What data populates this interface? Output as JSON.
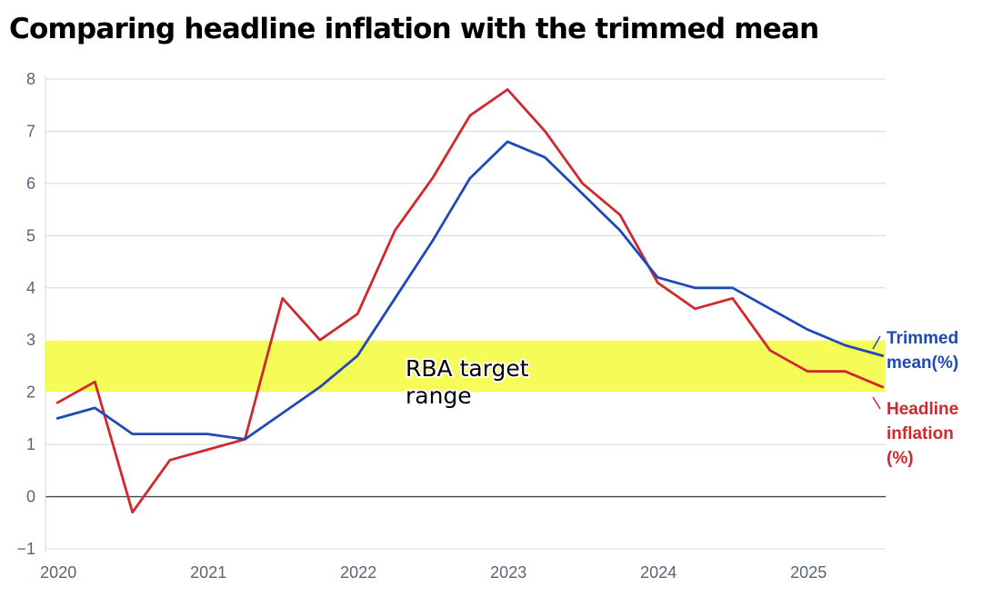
{
  "title": "Comparing headline inflation with the trimmed mean",
  "chart_data": {
    "type": "line",
    "title": "Comparing headline inflation with the trimmed mean",
    "x": [
      2020.0,
      2020.25,
      2020.5,
      2020.75,
      2021.0,
      2021.25,
      2021.5,
      2021.75,
      2022.0,
      2022.25,
      2022.5,
      2022.75,
      2023.0,
      2023.25,
      2023.5,
      2023.75,
      2024.0,
      2024.25,
      2024.5,
      2024.75,
      2025.0,
      2025.25,
      2025.5
    ],
    "x_ticks": [
      2020,
      2021,
      2022,
      2023,
      2024,
      2025
    ],
    "x_tick_labels": [
      "2020",
      "2021",
      "2022",
      "2023",
      "2024",
      "2025"
    ],
    "y_ticks": [
      -1,
      0,
      1,
      2,
      3,
      4,
      5,
      6,
      7,
      8
    ],
    "y_tick_labels": [
      "−1",
      "0",
      "1",
      "2",
      "3",
      "4",
      "5",
      "6",
      "7",
      "8"
    ],
    "xlim": [
      2019.92,
      2025.52
    ],
    "ylim": [
      -1,
      8
    ],
    "grid": true,
    "series": [
      {
        "name": "Trimmed mean(%)",
        "label_lines": [
          "Trimmed",
          "mean(%)"
        ],
        "color": "#1f4ab5",
        "values": [
          1.5,
          1.7,
          1.2,
          1.2,
          1.2,
          1.1,
          1.6,
          2.1,
          2.7,
          3.8,
          4.9,
          6.1,
          6.8,
          6.5,
          5.8,
          5.1,
          4.2,
          4.0,
          4.0,
          3.6,
          3.2,
          2.9,
          2.7
        ]
      },
      {
        "name": "Headline inflation (%)",
        "label_lines": [
          "Headline",
          "inflation",
          "(%)"
        ],
        "color": "#d1282e",
        "values": [
          1.8,
          2.2,
          -0.3,
          0.7,
          0.9,
          1.1,
          3.8,
          3.0,
          3.5,
          5.1,
          6.1,
          7.3,
          7.8,
          7.0,
          6.0,
          5.4,
          4.1,
          3.6,
          3.8,
          2.8,
          2.4,
          2.4,
          2.1
        ]
      }
    ],
    "annotations": [
      {
        "type": "band",
        "y_from": 2,
        "y_to": 3,
        "color": "#f5fc4e",
        "text_lines": [
          "RBA target",
          "range"
        ]
      }
    ]
  }
}
